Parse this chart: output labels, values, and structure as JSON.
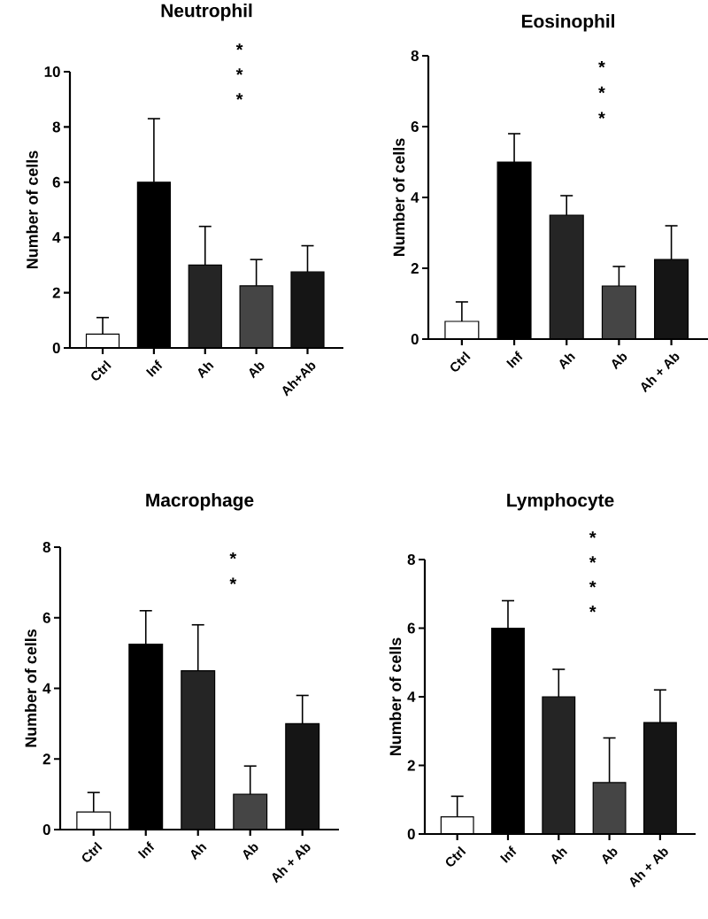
{
  "chart_data": [
    {
      "type": "bar",
      "title": "Neutrophil",
      "ylabel": "Number of cells",
      "categories": [
        "Ctrl",
        "Inf",
        "Ah",
        "Ab",
        "Ah+Ab"
      ],
      "values": [
        0.5,
        6,
        3,
        2.25,
        2.75
      ],
      "errors": [
        0.6,
        2.3,
        1.4,
        0.95,
        0.95
      ],
      "colors": [
        "#ffffff",
        "#000000",
        "#252525",
        "#454545",
        "#151515"
      ],
      "ylim": [
        0,
        10
      ],
      "yticks": [
        0,
        2,
        4,
        6,
        8,
        10
      ],
      "annotations": [
        "*",
        "*",
        "*"
      ]
    },
    {
      "type": "bar",
      "title": "Eosinophil",
      "ylabel": "Number of cells",
      "categories": [
        "Ctrl",
        "Inf",
        "Ah",
        "Ab",
        "Ah + Ab"
      ],
      "values": [
        0.5,
        5,
        3.5,
        1.5,
        2.25
      ],
      "errors": [
        0.55,
        0.8,
        0.55,
        0.55,
        0.95
      ],
      "colors": [
        "#ffffff",
        "#000000",
        "#252525",
        "#454545",
        "#151515"
      ],
      "ylim": [
        0,
        8
      ],
      "yticks": [
        0,
        2,
        4,
        6,
        8
      ],
      "annotations": [
        "*",
        "*",
        "*"
      ]
    },
    {
      "type": "bar",
      "title": "Macrophage",
      "ylabel": "Number of cells",
      "categories": [
        "Ctrl",
        "Inf",
        "Ah",
        "Ab",
        "Ah + Ab"
      ],
      "values": [
        0.5,
        5.25,
        4.5,
        1,
        3
      ],
      "errors": [
        0.55,
        0.95,
        1.3,
        0.8,
        0.8
      ],
      "colors": [
        "#ffffff",
        "#000000",
        "#252525",
        "#454545",
        "#151515"
      ],
      "ylim": [
        0,
        8
      ],
      "yticks": [
        0,
        2,
        4,
        6,
        8
      ],
      "annotations": [
        "*",
        "*"
      ]
    },
    {
      "type": "bar",
      "title": "Lymphocyte",
      "ylabel": "Number of cells",
      "categories": [
        "Ctrl",
        "Inf",
        "Ah",
        "Ab",
        "Ah + Ab"
      ],
      "values": [
        0.5,
        6,
        4,
        1.5,
        3.25
      ],
      "errors": [
        0.6,
        0.8,
        0.8,
        1.3,
        0.95
      ],
      "colors": [
        "#ffffff",
        "#000000",
        "#252525",
        "#454545",
        "#151515"
      ],
      "ylim": [
        0,
        8
      ],
      "yticks": [
        0,
        2,
        4,
        6,
        8
      ],
      "annotations": [
        "*",
        "*",
        "*",
        "*"
      ]
    }
  ]
}
